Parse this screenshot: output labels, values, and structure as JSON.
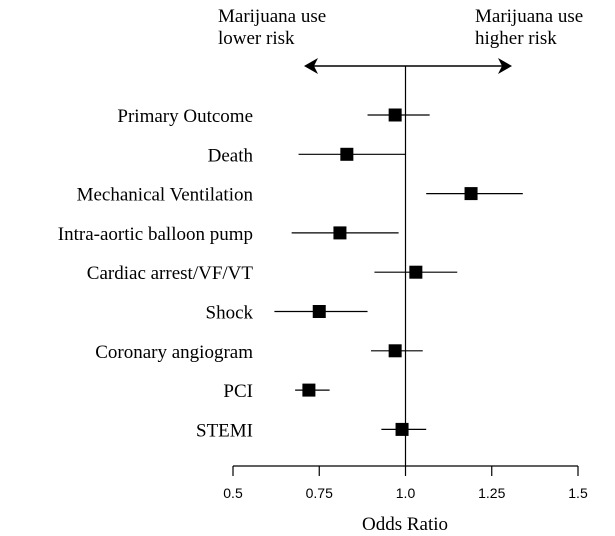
{
  "chart_data": {
    "type": "forest",
    "annotations": {
      "left": [
        "Marijuana use",
        "lower risk"
      ],
      "right": [
        "Marijuana use",
        "higher risk"
      ]
    },
    "xlabel": "Odds Ratio",
    "xlim": [
      0.5,
      1.5
    ],
    "xticks": [
      0.5,
      0.75,
      1.0,
      1.25,
      1.5
    ],
    "xtick_labels": [
      "0.5",
      "0.75",
      "1.0",
      "1.25",
      "1.5"
    ],
    "reference_line": 1.0,
    "rows": [
      {
        "label": "Primary Outcome",
        "or": 0.97,
        "lo": 0.89,
        "hi": 1.07
      },
      {
        "label": "Death",
        "or": 0.83,
        "lo": 0.69,
        "hi": 1.0
      },
      {
        "label": "Mechanical Ventilation",
        "or": 1.19,
        "lo": 1.06,
        "hi": 1.34
      },
      {
        "label": "Intra-aortic balloon pump",
        "or": 0.81,
        "lo": 0.67,
        "hi": 0.98
      },
      {
        "label": "Cardiac arrest/VF/VT",
        "or": 1.03,
        "lo": 0.91,
        "hi": 1.15
      },
      {
        "label": "Shock",
        "or": 0.75,
        "lo": 0.62,
        "hi": 0.89
      },
      {
        "label": "Coronary angiogram",
        "or": 0.97,
        "lo": 0.9,
        "hi": 1.05
      },
      {
        "label": "PCI",
        "or": 0.72,
        "lo": 0.68,
        "hi": 0.78
      },
      {
        "label": "STEMI",
        "or": 0.99,
        "lo": 0.93,
        "hi": 1.06
      }
    ]
  }
}
